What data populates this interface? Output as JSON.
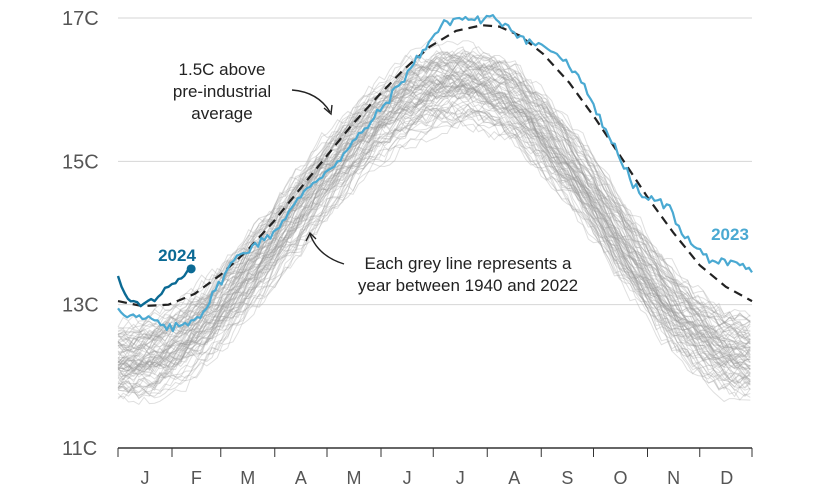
{
  "chart_data": {
    "type": "line",
    "title": "",
    "xlabel": "",
    "ylabel": "",
    "ylim": [
      11,
      17.2
    ],
    "y_ticks": [
      {
        "value": 11,
        "label": "11C"
      },
      {
        "value": 13,
        "label": "13C"
      },
      {
        "value": 15,
        "label": "15C"
      },
      {
        "value": 17,
        "label": "17C"
      }
    ],
    "x_range": [
      "Jan 1",
      "Dec 31"
    ],
    "months": [
      "J",
      "F",
      "M",
      "A",
      "M",
      "J",
      "J",
      "A",
      "S",
      "O",
      "N",
      "D"
    ],
    "grid": true,
    "colors": {
      "grey": "#9a9a9a",
      "series_2023": "#4aa9d2",
      "series_2024": "#0b6a94",
      "threshold": "#222222",
      "grid": "#d6d6d6",
      "axis": "#333333"
    },
    "series": [
      {
        "name": "2023",
        "points": [
          [
            1,
            12.95
          ],
          [
            8,
            12.85
          ],
          [
            15,
            12.8
          ],
          [
            22,
            12.78
          ],
          [
            29,
            12.65
          ],
          [
            36,
            12.7
          ],
          [
            43,
            12.78
          ],
          [
            50,
            12.9
          ],
          [
            57,
            13.2
          ],
          [
            64,
            13.5
          ],
          [
            71,
            13.7
          ],
          [
            78,
            13.82
          ],
          [
            85,
            13.9
          ],
          [
            92,
            14.05
          ],
          [
            99,
            14.3
          ],
          [
            106,
            14.5
          ],
          [
            113,
            14.7
          ],
          [
            120,
            14.85
          ],
          [
            127,
            15.0
          ],
          [
            134,
            15.2
          ],
          [
            141,
            15.4
          ],
          [
            148,
            15.6
          ],
          [
            155,
            15.82
          ],
          [
            162,
            16.05
          ],
          [
            169,
            16.3
          ],
          [
            176,
            16.55
          ],
          [
            183,
            16.78
          ],
          [
            190,
            16.95
          ],
          [
            197,
            17.0
          ],
          [
            204,
            16.98
          ],
          [
            211,
            16.98
          ],
          [
            218,
            16.98
          ],
          [
            225,
            16.9
          ],
          [
            232,
            16.75
          ],
          [
            239,
            16.65
          ],
          [
            246,
            16.6
          ],
          [
            253,
            16.5
          ],
          [
            260,
            16.32
          ],
          [
            267,
            16.1
          ],
          [
            274,
            15.8
          ],
          [
            281,
            15.45
          ],
          [
            288,
            15.1
          ],
          [
            295,
            14.75
          ],
          [
            302,
            14.5
          ],
          [
            309,
            14.45
          ],
          [
            316,
            14.4
          ],
          [
            323,
            14.1
          ],
          [
            330,
            13.85
          ],
          [
            337,
            13.7
          ],
          [
            344,
            13.6
          ],
          [
            351,
            13.55
          ],
          [
            358,
            13.55
          ],
          [
            365,
            13.45
          ]
        ]
      },
      {
        "name": "2024",
        "points": [
          [
            1,
            13.4
          ],
          [
            5,
            13.15
          ],
          [
            10,
            13.05
          ],
          [
            14,
            12.98
          ],
          [
            18,
            13.05
          ],
          [
            22,
            13.05
          ],
          [
            26,
            13.15
          ],
          [
            30,
            13.25
          ],
          [
            34,
            13.3
          ],
          [
            39,
            13.4
          ],
          [
            43,
            13.5
          ]
        ]
      }
    ],
    "threshold": {
      "label": "1.5C above pre-industrial average",
      "points": [
        [
          1,
          13.05
        ],
        [
          15,
          12.98
        ],
        [
          30,
          13.0
        ],
        [
          45,
          13.15
        ],
        [
          60,
          13.42
        ],
        [
          75,
          13.75
        ],
        [
          90,
          14.15
        ],
        [
          105,
          14.6
        ],
        [
          120,
          15.05
        ],
        [
          135,
          15.5
        ],
        [
          150,
          15.9
        ],
        [
          165,
          16.28
        ],
        [
          180,
          16.6
        ],
        [
          195,
          16.82
        ],
        [
          210,
          16.9
        ],
        [
          220,
          16.88
        ],
        [
          232,
          16.75
        ],
        [
          245,
          16.5
        ],
        [
          260,
          16.1
        ],
        [
          275,
          15.6
        ],
        [
          290,
          15.05
        ],
        [
          305,
          14.5
        ],
        [
          320,
          14.0
        ],
        [
          335,
          13.55
        ],
        [
          350,
          13.25
        ],
        [
          365,
          13.05
        ]
      ]
    },
    "background_years": {
      "from": 1940,
      "to": 2022,
      "start_range": [
        11.6,
        12.8
      ],
      "peak_range": [
        15.5,
        16.7
      ],
      "end_range": [
        11.7,
        12.9
      ]
    },
    "annotations": {
      "threshold_lines": [
        "1.5C above",
        "pre-industrial",
        "average"
      ],
      "grey_lines": [
        "Each grey line represents a",
        "year between 1940 and 2022"
      ],
      "label_2023": "2023",
      "label_2024": "2024"
    }
  }
}
